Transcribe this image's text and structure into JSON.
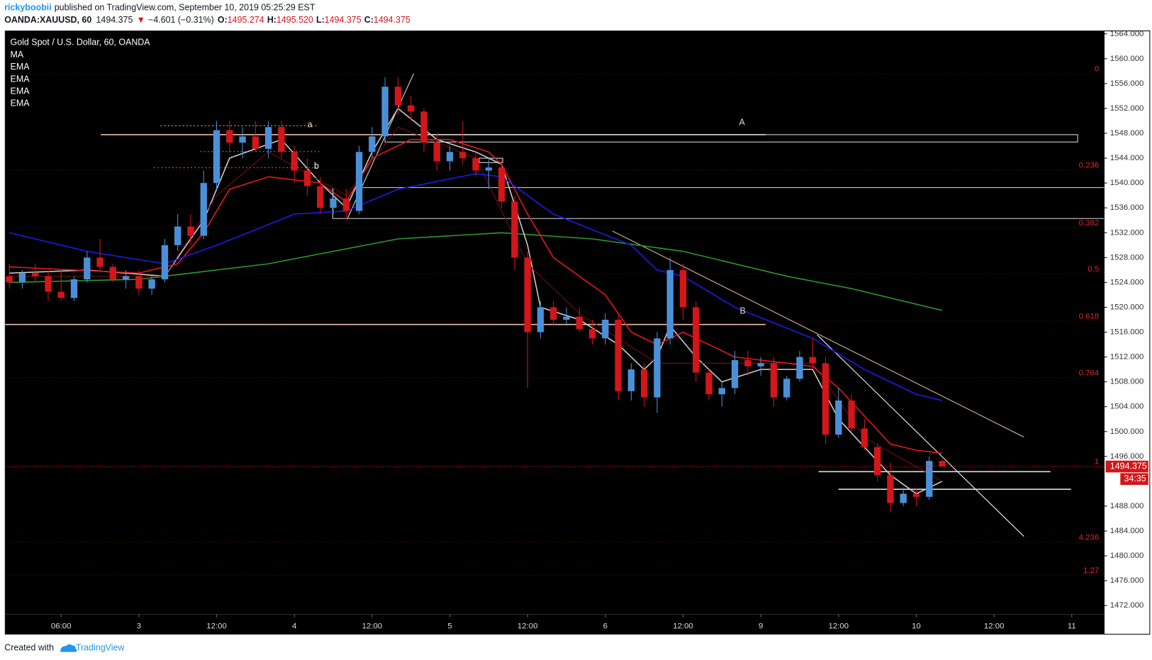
{
  "header": {
    "author": "rickyboobii",
    "published": "published on TradingView.com, September 10, 2019 05:25:29 EST",
    "symbol": "OANDA:XAUUSD, 60",
    "last": "1494.375",
    "arrow": "▼",
    "change": "−4.601 (−0.31%)",
    "o_label": "O:",
    "o": "1495.274",
    "h_label": "H:",
    "h": "1495.520",
    "l_label": "L:",
    "l": "1494.375",
    "c_label": "C:",
    "c": "1494.375"
  },
  "footer": {
    "created": "Created with",
    "brand": "TradingView"
  },
  "chart_data": {
    "type": "candlestick",
    "title": "Gold Spot / U.S. Dollar, 60, OANDA",
    "up_color": "#4a90d9",
    "down_color": "#d3161a",
    "grid": false,
    "xlim": [
      -0.32,
      84.5
    ],
    "ylim": [
      1470.58,
      1564.36
    ],
    "xticks": [
      {
        "value": 4,
        "label": "06:00"
      },
      {
        "value": 10,
        "label": "3"
      },
      {
        "value": 16,
        "label": "12:00"
      },
      {
        "value": 22,
        "label": "4"
      },
      {
        "value": 28,
        "label": "12:00"
      },
      {
        "value": 34,
        "label": "5"
      },
      {
        "value": 40,
        "label": "12:00"
      },
      {
        "value": 46,
        "label": "6"
      },
      {
        "value": 52,
        "label": "12:00"
      },
      {
        "value": 58,
        "label": "9"
      },
      {
        "value": 64,
        "label": "12:00"
      },
      {
        "value": 70,
        "label": "10"
      },
      {
        "value": 76,
        "label": "12:00"
      },
      {
        "value": 82,
        "label": "11"
      }
    ],
    "yticks": [
      {
        "value": 1564,
        "label": "1564.000"
      },
      {
        "value": 1560,
        "label": "1560.000"
      },
      {
        "value": 1556,
        "label": "1556.000"
      },
      {
        "value": 1552,
        "label": "1552.000"
      },
      {
        "value": 1548,
        "label": "1548.000"
      },
      {
        "value": 1544,
        "label": "1544.000"
      },
      {
        "value": 1540,
        "label": "1540.000"
      },
      {
        "value": 1536,
        "label": "1536.000"
      },
      {
        "value": 1532,
        "label": "1532.000"
      },
      {
        "value": 1528,
        "label": "1528.000"
      },
      {
        "value": 1524,
        "label": "1524.000"
      },
      {
        "value": 1520,
        "label": "1520.000"
      },
      {
        "value": 1516,
        "label": "1516.000"
      },
      {
        "value": 1512,
        "label": "1512.000"
      },
      {
        "value": 1508,
        "label": "1508.000"
      },
      {
        "value": 1504,
        "label": "1504.000"
      },
      {
        "value": 1500,
        "label": "1500.000"
      },
      {
        "value": 1496,
        "label": "1496.000"
      },
      {
        "value": 1488,
        "label": "1488.000"
      },
      {
        "value": 1484,
        "label": "1484.000"
      },
      {
        "value": 1480,
        "label": "1480.000"
      },
      {
        "value": 1476,
        "label": "1476.000"
      },
      {
        "value": 1472,
        "label": "1472.000"
      }
    ],
    "open": [
      1525,
      1524,
      1525.5,
      1525,
      1522.5,
      1521.5,
      1524.5,
      1528,
      1526.5,
      1524.5,
      1525,
      1523,
      1524.5,
      1530,
      1533,
      1531.5,
      1540,
      1548.5,
      1546.5,
      1547.5,
      1545.5,
      1549,
      1545,
      1542,
      1539.5,
      1536,
      1537.5,
      1535.5,
      1545,
      1547.5,
      1555.5,
      1552.5,
      1551.5,
      1546.5,
      1543.5,
      1545,
      1544,
      1542,
      1542.5,
      1537,
      1528,
      1516,
      1520,
      1518,
      1518.5,
      1516.5,
      1515,
      1518,
      1506.5,
      1510,
      1505.5,
      1515,
      1526,
      1520,
      1509.5,
      1506,
      1507,
      1511.5,
      1510.5,
      1511,
      1505.5,
      1508.5,
      1512,
      1511,
      1499.5,
      1505,
      1500.5,
      1497.5,
      1493,
      1488.5,
      1490,
      1489.5,
      1495.274
    ],
    "high": [
      1527,
      1526,
      1527,
      1526,
      1526,
      1525,
      1529,
      1531,
      1527,
      1526,
      1526,
      1525,
      1531,
      1535,
      1535,
      1542,
      1550,
      1550,
      1549,
      1550,
      1550,
      1550,
      1546,
      1544,
      1541,
      1539,
      1539,
      1546,
      1549,
      1557,
      1557,
      1554,
      1552,
      1548,
      1546,
      1550,
      1545,
      1544,
      1544,
      1538,
      1529,
      1521,
      1521,
      1520,
      1520,
      1518,
      1519,
      1519,
      1511,
      1511,
      1516,
      1528,
      1527,
      1521,
      1510,
      1508,
      1513,
      1513,
      1512,
      1512,
      1509,
      1513,
      1515,
      1512,
      1507,
      1506,
      1502,
      1498,
      1495,
      1491,
      1491,
      1496,
      1495.52
    ],
    "low": [
      1523,
      1523,
      1524,
      1521,
      1521,
      1521,
      1524,
      1526,
      1524,
      1523,
      1522,
      1522,
      1524,
      1529,
      1530,
      1531,
      1539,
      1545,
      1544,
      1545,
      1544,
      1544,
      1540,
      1538,
      1535,
      1535,
      1534,
      1535,
      1544,
      1547,
      1551,
      1550,
      1545,
      1542,
      1542,
      1543,
      1541,
      1539,
      1536,
      1526,
      1507,
      1515,
      1517,
      1517,
      1516,
      1514,
      1514,
      1505,
      1505,
      1504,
      1503,
      1514,
      1518,
      1508,
      1505,
      1504,
      1506,
      1509,
      1509,
      1504,
      1505,
      1508,
      1510,
      1498,
      1499,
      1500,
      1497,
      1492,
      1487,
      1488,
      1488,
      1489,
      1494.375
    ],
    "close": [
      1524,
      1525.5,
      1525,
      1522.5,
      1521.5,
      1524.5,
      1528,
      1526.5,
      1524.5,
      1525,
      1523,
      1524.5,
      1530,
      1533,
      1531.5,
      1540,
      1548.5,
      1546.5,
      1547.5,
      1545.5,
      1549,
      1545,
      1542,
      1539.5,
      1536,
      1537.5,
      1535.5,
      1545,
      1547.5,
      1555.5,
      1552.5,
      1551.5,
      1546.5,
      1543.5,
      1545,
      1544,
      1542,
      1542.5,
      1537,
      1528,
      1516,
      1520,
      1518,
      1518.5,
      1516.5,
      1515,
      1518,
      1506.5,
      1510,
      1505.5,
      1515,
      1526,
      1520,
      1509.5,
      1506,
      1507,
      1511.5,
      1510.5,
      1511,
      1505.5,
      1508.5,
      1512,
      1511,
      1499.5,
      1505,
      1500.5,
      1497.5,
      1493,
      1488.5,
      1490,
      1489.5,
      1495.274,
      1494.375
    ],
    "series": [
      {
        "name": "MA",
        "color": "#2e9a2e",
        "x": [
          0,
          10,
          20,
          30,
          38,
          45,
          52,
          60,
          65,
          72
        ],
        "values": [
          1524,
          1524.5,
          1527,
          1531,
          1532,
          1531,
          1529,
          1525,
          1523,
          1519.5
        ]
      },
      {
        "name": "EMA",
        "color": "#cfcfcf",
        "x": [
          0,
          6,
          12,
          15,
          17,
          21,
          24,
          26,
          28,
          30,
          33,
          36,
          38,
          40,
          41,
          44,
          47,
          49,
          50,
          51,
          53,
          55,
          58,
          62,
          64,
          68,
          70,
          72
        ],
        "values": [
          1525.5,
          1526,
          1525,
          1534,
          1544,
          1547,
          1540,
          1536,
          1545,
          1552,
          1547,
          1545,
          1543,
          1530,
          1520,
          1518,
          1514,
          1510,
          1512,
          1517,
          1512,
          1508,
          1510,
          1510,
          1502,
          1493,
          1490,
          1492
        ]
      },
      {
        "name": "EMA",
        "color": "#7a1010",
        "x": [
          0,
          12,
          16,
          20,
          26,
          30,
          36,
          40,
          44,
          50,
          56,
          62,
          66,
          72
        ],
        "values": [
          1525,
          1525,
          1538,
          1545,
          1538,
          1549,
          1544,
          1527,
          1519,
          1511,
          1511,
          1511,
          1499,
          1492
        ]
      },
      {
        "name": "EMA",
        "color": "#e8191c",
        "x": [
          0,
          10,
          13,
          15,
          17,
          20,
          24,
          26,
          28,
          31,
          34,
          37,
          38,
          40,
          42,
          46,
          48,
          50,
          52,
          54,
          56,
          60,
          62,
          64,
          68,
          70,
          72
        ],
        "values": [
          1526.5,
          1525.5,
          1527,
          1532,
          1539,
          1541,
          1540,
          1537,
          1544,
          1547,
          1547,
          1545,
          1543,
          1535,
          1528,
          1522,
          1516,
          1514,
          1516,
          1514,
          1512,
          1511,
          1510.5,
          1507,
          1498,
          1497,
          1496.5
        ]
      },
      {
        "name": "EMA",
        "color": "#1c1cf0",
        "x": [
          0,
          6,
          12,
          16,
          22,
          26,
          30,
          36,
          38,
          42,
          48,
          50,
          52,
          56,
          62,
          66,
          70,
          72
        ],
        "values": [
          1532,
          1529,
          1527,
          1530,
          1535,
          1535.5,
          1539,
          1541.5,
          1541,
          1535,
          1530,
          1526,
          1525,
          1520,
          1515,
          1510,
          1506,
          1505
        ]
      }
    ],
    "fib_levels": [
      {
        "level": 0,
        "price": 1557.6
      },
      {
        "level": 0.236,
        "price": 1542.1
      },
      {
        "level": 0.382,
        "price": 1532.8
      },
      {
        "level": 0.5,
        "price": 1525.4
      },
      {
        "level": 0.618,
        "price": 1517.8
      },
      {
        "level": 0.764,
        "price": 1508.7
      },
      {
        "level": 1,
        "price": 1494.4
      },
      {
        "level": 4.236,
        "price": 1482.2
      },
      {
        "level": 1.27,
        "price": 1476.9
      }
    ],
    "annotations": [
      "a",
      "b",
      "A",
      "B"
    ],
    "price_tag": {
      "price": 1494.375,
      "countdown": "34:35"
    }
  }
}
